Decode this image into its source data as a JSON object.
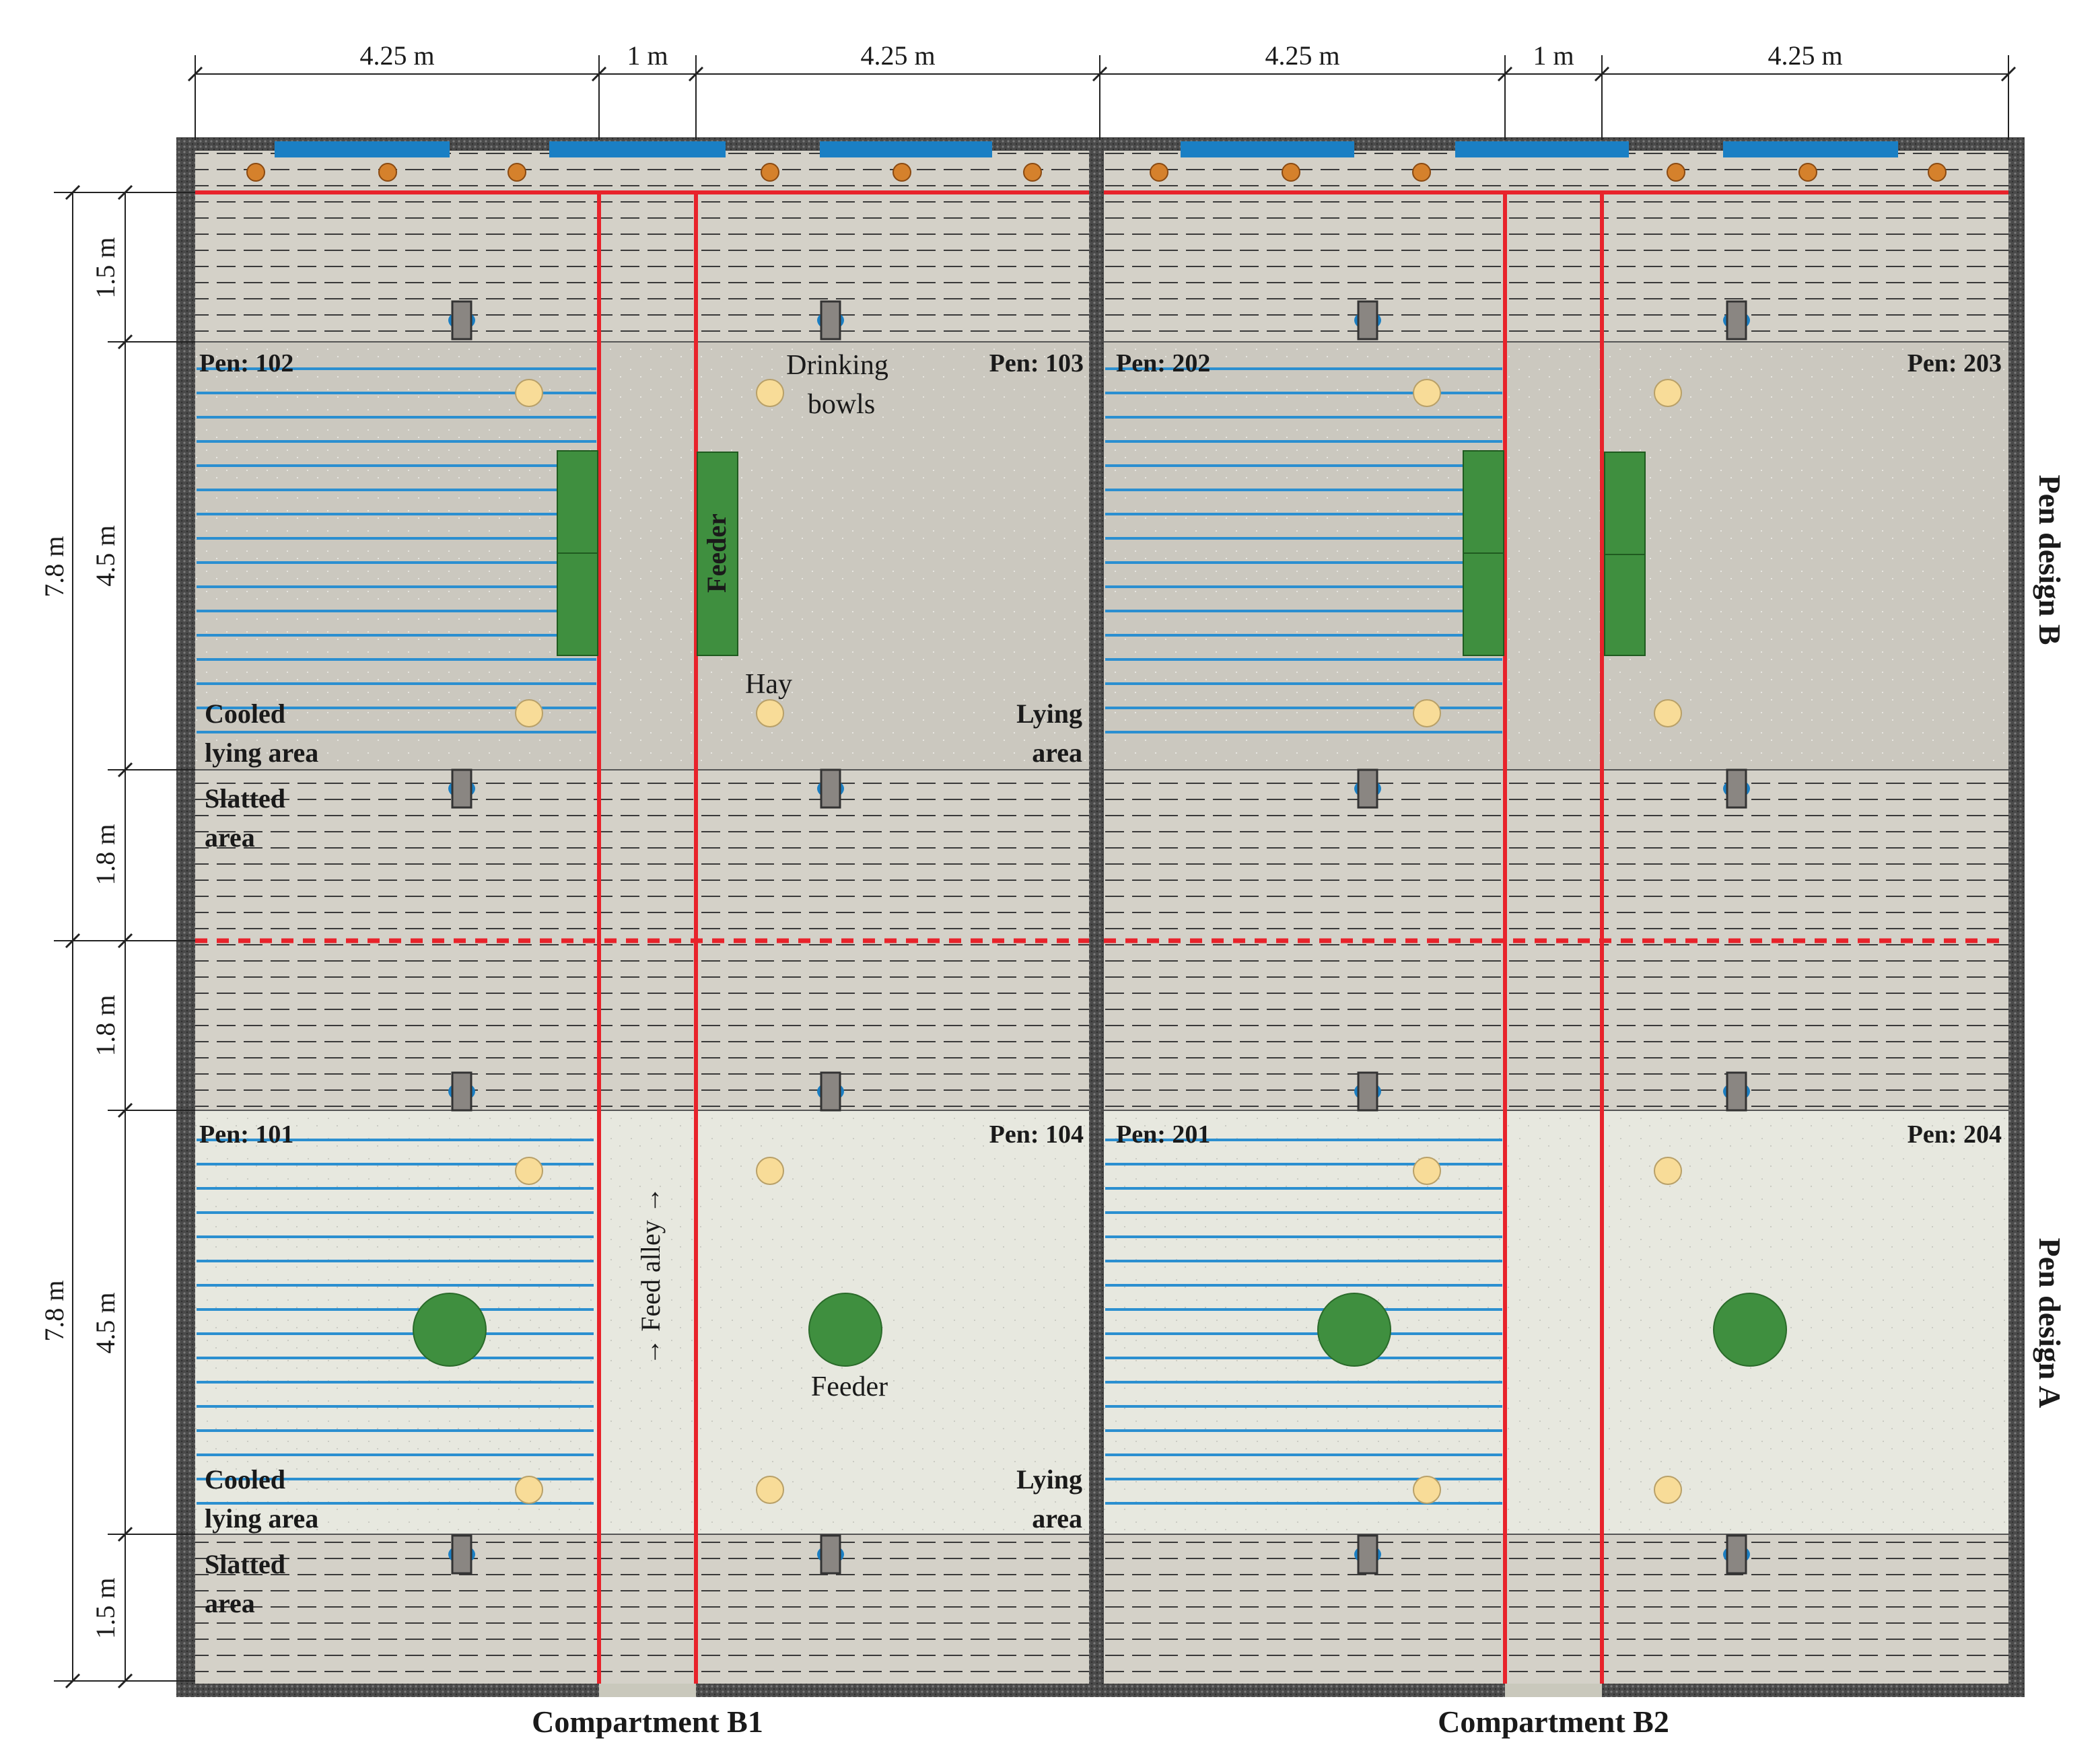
{
  "dimensions": {
    "top": [
      "4.25 m",
      "1 m",
      "4.25 m",
      "4.25 m",
      "1 m",
      "4.25 m"
    ],
    "left_outer": [
      "7.8 m",
      "7.8 m"
    ],
    "left_inner": [
      "1.5 m",
      "4.5 m",
      "1.8 m",
      "1.8 m",
      "4.5 m",
      "1.5 m"
    ]
  },
  "pens": {
    "p102": "Pen: 102",
    "p103": "Pen: 103",
    "p202": "Pen: 202",
    "p203": "Pen: 203",
    "p101": "Pen: 101",
    "p104": "Pen: 104",
    "p201": "Pen: 201",
    "p204": "Pen: 204"
  },
  "labels": {
    "drinking_1": "Drinking",
    "drinking_2": "bowls",
    "feeder": "Feeder",
    "hay": "Hay",
    "cooled_1": "Cooled",
    "cooled_2": "lying area",
    "lying_1": "Lying",
    "lying_2": "area",
    "slatted_1": "Slatted",
    "slatted_2": "area",
    "feed_alley": "→ Feed alley →"
  },
  "sides": {
    "design_b": "Pen design B",
    "design_a": "Pen design A"
  },
  "compartments": {
    "b1": "Compartment B1",
    "b2": "Compartment B2"
  },
  "colors": {
    "wall": "#595959",
    "slatted_bg": "#d4d1c8",
    "lying_b": "#cbc8bf",
    "lying_a": "#e7e8df",
    "barrier": "#e8232b",
    "cooling": "#2b8fd0",
    "feeder": "#3f8f3f",
    "bowl": "#f8dc98",
    "sprinkler": "#d5812c"
  }
}
